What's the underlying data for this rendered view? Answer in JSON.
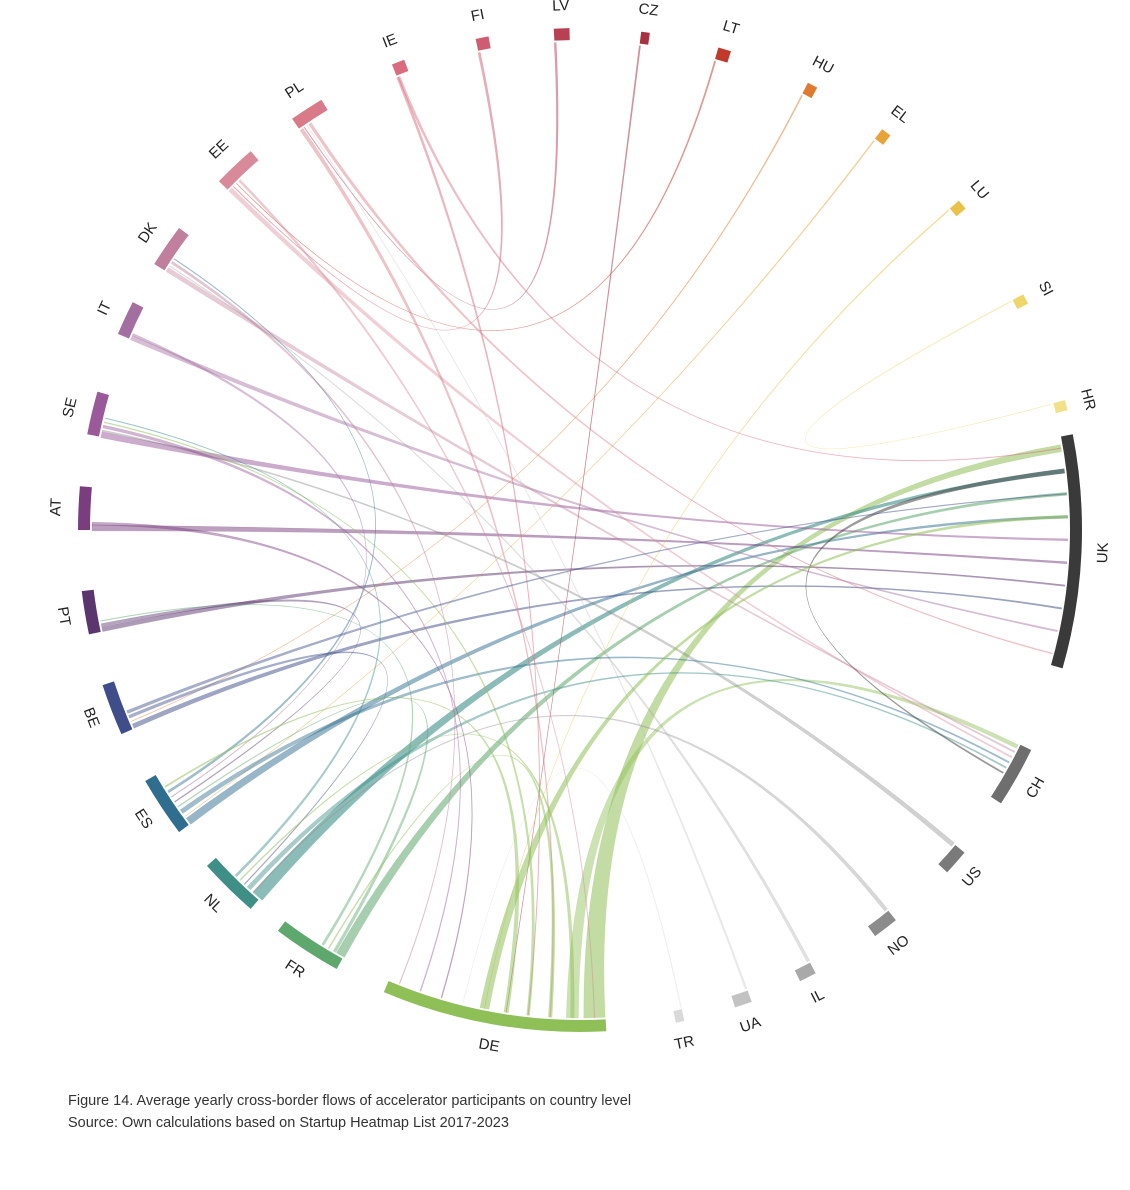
{
  "chart_data": {
    "type": "chord",
    "groups": [
      {
        "name": "UK",
        "color": "#3a3a3a"
      },
      {
        "name": "CH",
        "color": "#6e6e6e"
      },
      {
        "name": "US",
        "color": "#7a7a7a"
      },
      {
        "name": "NO",
        "color": "#8c8c8c"
      },
      {
        "name": "IL",
        "color": "#a9a9a9"
      },
      {
        "name": "UA",
        "color": "#c2c2c2"
      },
      {
        "name": "TR",
        "color": "#d9d9d9"
      },
      {
        "name": "DE",
        "color": "#8fbf57"
      },
      {
        "name": "FR",
        "color": "#5ea86e"
      },
      {
        "name": "NL",
        "color": "#3f8f87"
      },
      {
        "name": "ES",
        "color": "#2f6e8f"
      },
      {
        "name": "BE",
        "color": "#3f4e8a"
      },
      {
        "name": "PT",
        "color": "#5b356e"
      },
      {
        "name": "AT",
        "color": "#7a3e7f"
      },
      {
        "name": "SE",
        "color": "#9a5a9a"
      },
      {
        "name": "IT",
        "color": "#a36fa0"
      },
      {
        "name": "DK",
        "color": "#c07f9c"
      },
      {
        "name": "EE",
        "color": "#d98a9a"
      },
      {
        "name": "PL",
        "color": "#d97a88"
      },
      {
        "name": "IE",
        "color": "#d96b7f"
      },
      {
        "name": "FI",
        "color": "#d05c72"
      },
      {
        "name": "LV",
        "color": "#b84055"
      },
      {
        "name": "CZ",
        "color": "#a8323f"
      },
      {
        "name": "LT",
        "color": "#c0392b"
      },
      {
        "name": "HU",
        "color": "#e07a2e"
      },
      {
        "name": "EL",
        "color": "#e8a33a"
      },
      {
        "name": "LU",
        "color": "#e9c24a"
      },
      {
        "name": "SI",
        "color": "#eed66a"
      },
      {
        "name": "HR",
        "color": "#f2e08a"
      }
    ]
  },
  "caption": {
    "line1": "Figure 14. Average yearly cross-border flows of accelerator participants on country level",
    "line2": "Source: Own calculations based on Startup Heatmap List 2017-2023"
  }
}
